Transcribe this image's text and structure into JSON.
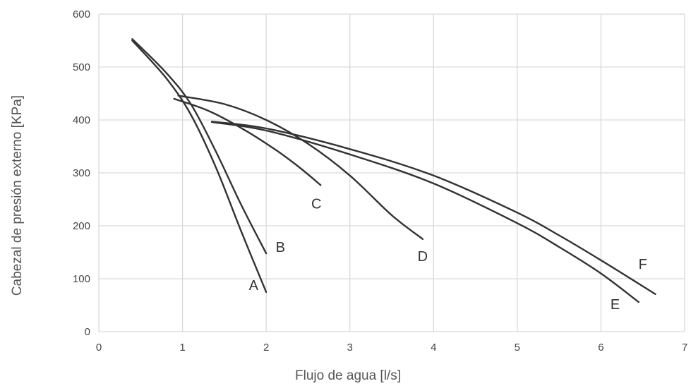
{
  "chart_data": {
    "type": "line",
    "title": "",
    "xlabel": "Flujo de agua [l/s]",
    "ylabel": "Cabezal de presión externo [KPa]",
    "xlim": [
      0,
      7
    ],
    "ylim": [
      0,
      600
    ],
    "x_ticks": [
      "0",
      "1",
      "2",
      "3",
      "4",
      "5",
      "6",
      "7"
    ],
    "y_ticks": [
      "0",
      "100",
      "200",
      "300",
      "400",
      "500",
      "600"
    ],
    "grid": true,
    "series": [
      {
        "name": "A",
        "x": [
          0.4,
          0.8,
          1.1,
          1.4,
          1.7,
          2.0
        ],
        "y": [
          550,
          480,
          410,
          310,
          190,
          75
        ]
      },
      {
        "name": "B",
        "x": [
          0.4,
          0.8,
          1.1,
          1.4,
          1.7,
          2.0
        ],
        "y": [
          553,
          490,
          430,
          340,
          240,
          148
        ]
      },
      {
        "name": "C",
        "x": [
          0.9,
          1.3,
          1.7,
          2.1,
          2.4,
          2.65
        ],
        "y": [
          440,
          418,
          385,
          345,
          310,
          277
        ]
      },
      {
        "name": "D",
        "x": [
          0.95,
          1.5,
          2.0,
          2.5,
          3.0,
          3.5,
          3.87
        ],
        "y": [
          446,
          430,
          400,
          355,
          295,
          220,
          175
        ]
      },
      {
        "name": "E",
        "x": [
          1.35,
          2.0,
          3.0,
          4.0,
          5.0,
          5.5,
          6.0,
          6.45
        ],
        "y": [
          396,
          380,
          335,
          280,
          205,
          160,
          110,
          56
        ]
      },
      {
        "name": "F",
        "x": [
          1.35,
          2.0,
          3.0,
          4.0,
          5.0,
          5.5,
          6.0,
          6.65
        ],
        "y": [
          397,
          384,
          345,
          295,
          225,
          182,
          135,
          71
        ]
      }
    ],
    "curve_labels": [
      {
        "text": "A",
        "x": 1.85,
        "y": 88
      },
      {
        "text": "B",
        "x": 2.17,
        "y": 160
      },
      {
        "text": "C",
        "x": 2.6,
        "y": 242
      },
      {
        "text": "D",
        "x": 3.87,
        "y": 143
      },
      {
        "text": "E",
        "x": 6.17,
        "y": 52
      },
      {
        "text": "F",
        "x": 6.5,
        "y": 128
      }
    ]
  }
}
